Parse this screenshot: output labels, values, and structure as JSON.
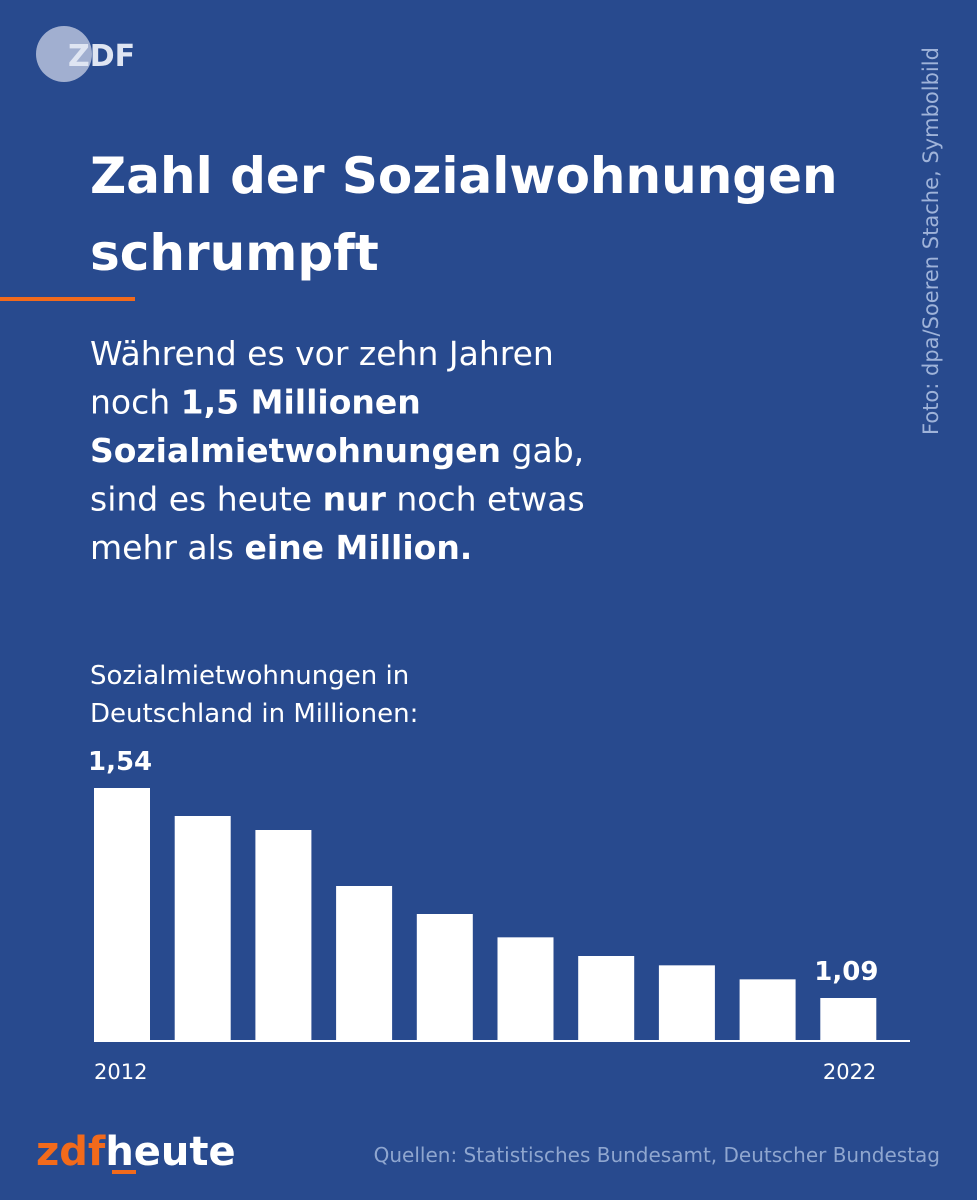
{
  "logo": "ZDF",
  "credit": "Foto: dpa/Soeren Stache, Symbolbild",
  "headline": [
    "Zahl der Sozialwohnungen",
    "schrumpft"
  ],
  "description": [
    [
      {
        "text": "Während es vor zehn Jahren",
        "bold": false
      }
    ],
    [
      {
        "text": "noch ",
        "bold": false
      },
      {
        "text": "1,5 Millionen",
        "bold": true
      }
    ],
    [
      {
        "text": "Sozialmietwohnungen",
        "bold": true
      },
      {
        "text": " gab,",
        "bold": false
      }
    ],
    [
      {
        "text": "sind es heute ",
        "bold": false
      },
      {
        "text": "nur",
        "bold": true
      },
      {
        "text": " noch etwas",
        "bold": false
      }
    ],
    [
      {
        "text": "mehr als ",
        "bold": false
      },
      {
        "text": "eine Million.",
        "bold": true
      }
    ]
  ],
  "brand": {
    "part1": "zdf",
    "part2": "heute"
  },
  "source": "Quellen: Statistisches Bundesamt, Deutscher Bundestag",
  "chart_data": {
    "type": "bar",
    "title": [
      "Sozialmietwohnungen in",
      "Deutschland in Millionen:"
    ],
    "categories": [
      "2012",
      null,
      null,
      null,
      null,
      null,
      null,
      null,
      null,
      "2022"
    ],
    "values": [
      1.54,
      1.48,
      1.45,
      1.33,
      1.27,
      1.22,
      1.18,
      1.16,
      1.13,
      1.09
    ],
    "value_labels": [
      "1,54",
      null,
      null,
      null,
      null,
      null,
      null,
      null,
      null,
      "1,09"
    ],
    "color": "#ffffff",
    "ylim": [
      1.0,
      1.6
    ],
    "grid": false
  }
}
